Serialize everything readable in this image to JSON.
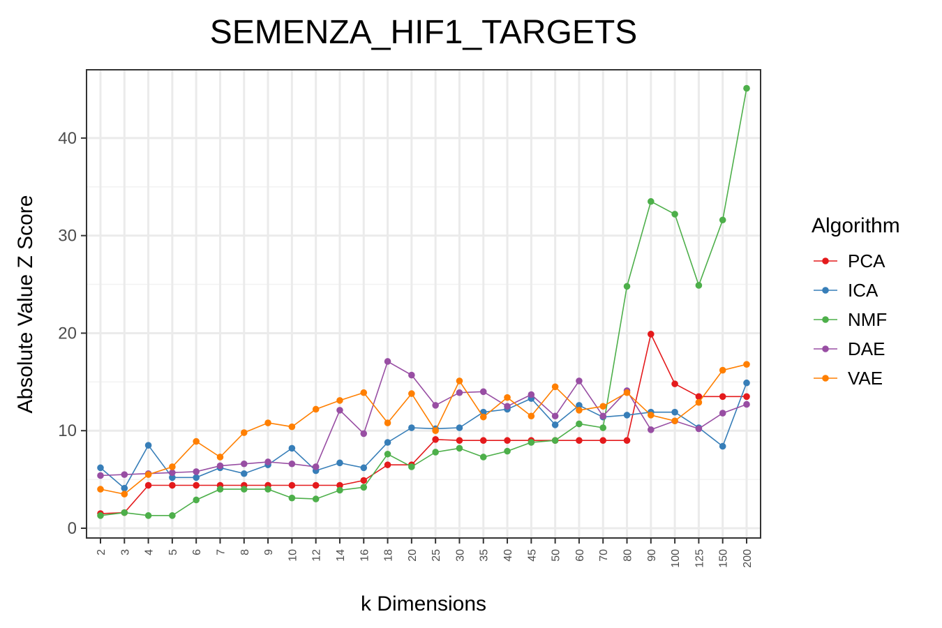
{
  "chart_data": {
    "type": "line",
    "title": "SEMENZA_HIF1_TARGETS",
    "xlabel": "k Dimensions",
    "ylabel": "Absolute Value Z Score",
    "x": [
      "2",
      "3",
      "4",
      "5",
      "6",
      "7",
      "8",
      "9",
      "10",
      "12",
      "14",
      "16",
      "18",
      "20",
      "25",
      "30",
      "35",
      "40",
      "45",
      "50",
      "60",
      "70",
      "80",
      "90",
      "100",
      "125",
      "150",
      "200"
    ],
    "ylim": [
      -1,
      47
    ],
    "yticks": [
      0,
      10,
      20,
      30,
      40
    ],
    "grid": true,
    "legend": {
      "title": "Algorithm",
      "position": "right"
    },
    "series": [
      {
        "name": "PCA",
        "color": "#e41a1c",
        "values": [
          1.5,
          1.6,
          4.4,
          4.4,
          4.4,
          4.4,
          4.4,
          4.4,
          4.4,
          4.4,
          4.4,
          4.9,
          6.5,
          6.5,
          9.1,
          9.0,
          9.0,
          9.0,
          9.0,
          9.0,
          9.0,
          9.0,
          9.0,
          19.9,
          14.8,
          13.5,
          13.5,
          13.5
        ]
      },
      {
        "name": "ICA",
        "color": "#377eb8",
        "values": [
          6.2,
          4.1,
          8.5,
          5.2,
          5.2,
          6.2,
          5.6,
          6.5,
          8.2,
          5.9,
          6.7,
          6.2,
          8.8,
          10.3,
          10.2,
          10.3,
          11.9,
          12.2,
          13.3,
          10.6,
          12.6,
          11.4,
          11.6,
          11.9,
          11.9,
          10.3,
          8.4,
          14.9
        ]
      },
      {
        "name": "NMF",
        "color": "#4daf4a",
        "values": [
          1.3,
          1.6,
          1.3,
          1.3,
          2.9,
          4.0,
          4.0,
          4.0,
          3.1,
          3.0,
          3.9,
          4.2,
          7.6,
          6.3,
          7.8,
          8.2,
          7.3,
          7.9,
          8.8,
          9.0,
          10.7,
          10.3,
          24.8,
          33.5,
          32.2,
          24.9,
          31.6,
          45.1
        ]
      },
      {
        "name": "DAE",
        "color": "#984ea3",
        "values": [
          5.4,
          5.5,
          5.6,
          5.7,
          5.8,
          6.4,
          6.6,
          6.8,
          6.6,
          6.3,
          12.1,
          9.7,
          17.1,
          15.7,
          12.6,
          13.9,
          14.0,
          12.5,
          13.7,
          11.5,
          15.1,
          11.5,
          14.1,
          10.1,
          11.0,
          10.2,
          11.8,
          12.7
        ]
      },
      {
        "name": "VAE",
        "color": "#ff7f00",
        "values": [
          4.0,
          3.5,
          5.5,
          6.3,
          8.9,
          7.3,
          9.8,
          10.8,
          10.4,
          12.2,
          13.1,
          13.9,
          10.8,
          13.8,
          10.0,
          15.1,
          11.4,
          13.4,
          11.5,
          14.5,
          12.1,
          12.5,
          13.9,
          11.6,
          11.0,
          12.9,
          16.2,
          16.8
        ]
      }
    ]
  }
}
